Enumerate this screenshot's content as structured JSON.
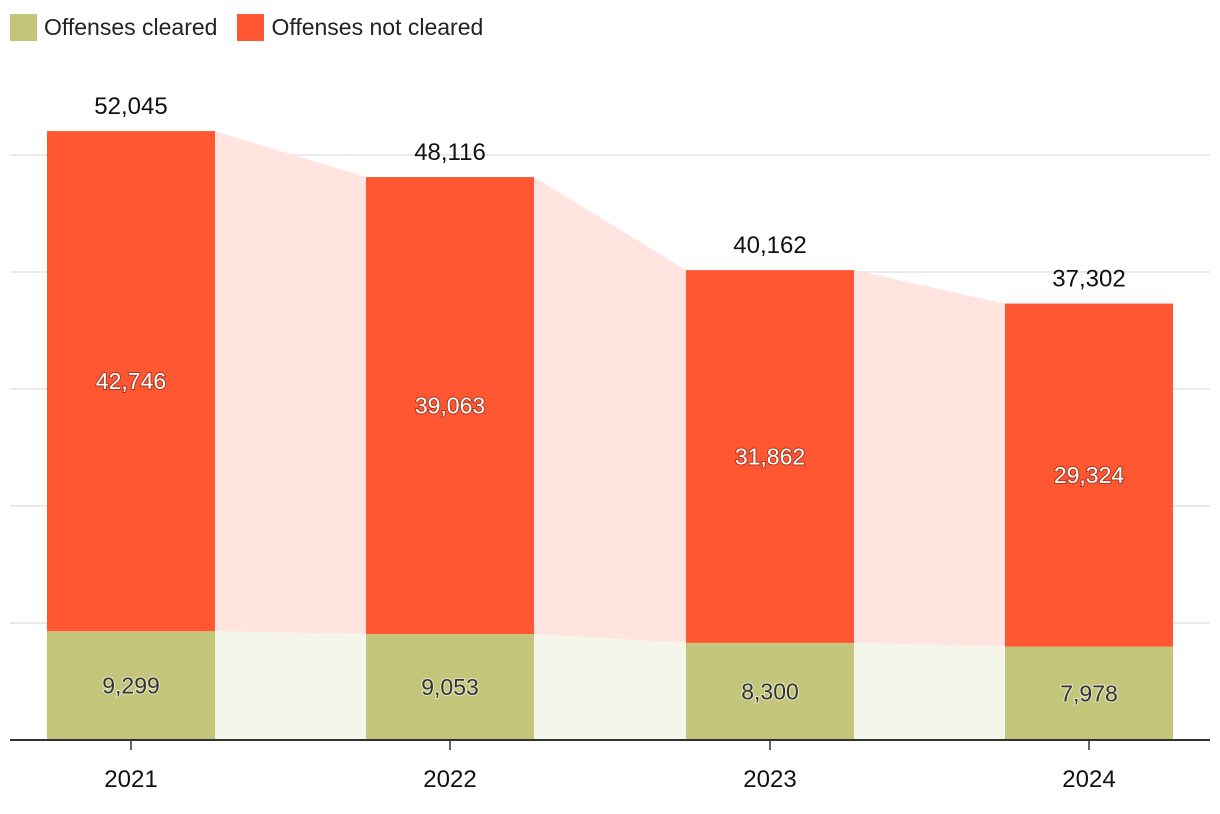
{
  "legend": {
    "cleared_label": "Offenses cleared",
    "not_cleared_label": "Offenses not cleared"
  },
  "colors": {
    "cleared": "#c2c57a",
    "not_cleared": "#ff5732",
    "cleared_band": "#f4f6ea",
    "not_cleared_band": "#ffe4df",
    "grid": "#e3e3e3",
    "axis": "#333333"
  },
  "chart_data": {
    "type": "bar",
    "stacked": true,
    "categories": [
      "2021",
      "2022",
      "2023",
      "2024"
    ],
    "series": [
      {
        "name": "Offenses cleared",
        "values": [
          9299,
          9053,
          8300,
          7978
        ],
        "labels": [
          "9,299",
          "9,053",
          "8,300",
          "7,978"
        ]
      },
      {
        "name": "Offenses not cleared",
        "values": [
          42746,
          39063,
          31862,
          29324
        ],
        "labels": [
          "42,746",
          "39,063",
          "31,862",
          "29,324"
        ]
      }
    ],
    "totals": [
      52045,
      48116,
      40162,
      37302
    ],
    "total_labels": [
      "52,045",
      "48,116",
      "40,162",
      "37,302"
    ],
    "ylim": [
      0,
      60000
    ],
    "grid": true,
    "legend_position": "top-left",
    "title": "",
    "xlabel": "",
    "ylabel": ""
  }
}
